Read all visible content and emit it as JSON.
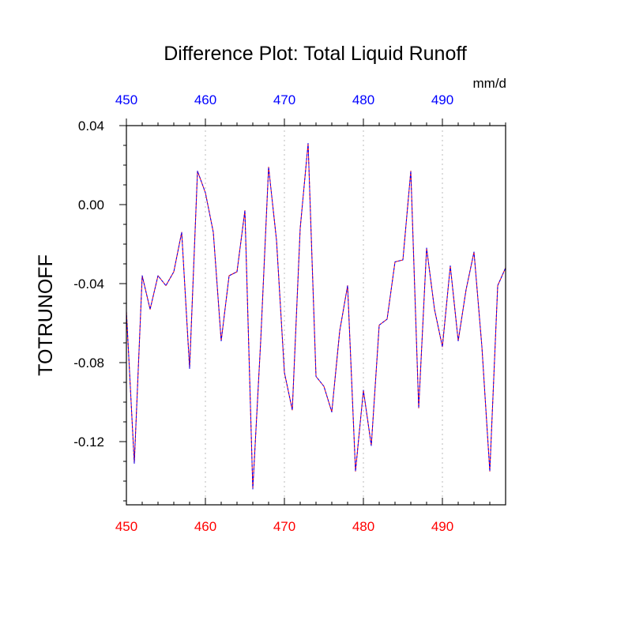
{
  "chart_data": {
    "type": "line",
    "title": "Difference Plot: Total Liquid Runoff",
    "units": "mm/d",
    "ylabel": "TOTRUNOFF",
    "xlabel": "",
    "xlim": [
      450,
      498
    ],
    "ylim": [
      -0.152,
      0.04
    ],
    "x_ticks": [
      "450",
      "460",
      "470",
      "480",
      "490"
    ],
    "x_tick_values": [
      450,
      460,
      470,
      480,
      490
    ],
    "y_ticks": [
      "0.04",
      "0.00",
      "-0.04",
      "-0.08",
      "-0.12"
    ],
    "y_tick_values": [
      0.04,
      0.0,
      -0.04,
      -0.08,
      -0.12
    ],
    "grid": "vertical-dotted",
    "colors": {
      "bottom_ticks": "#ff0000",
      "top_ticks": "#0000ff",
      "series_a": "#ff0000",
      "series_b": "#0000ff",
      "grid": "#bbbbbb"
    },
    "series": [
      {
        "line_style": "solid",
        "x": [
          450,
          451,
          452,
          453,
          454,
          455,
          456,
          457,
          458,
          459,
          460,
          461,
          462,
          463,
          464,
          465,
          466,
          467,
          468,
          469,
          470,
          471,
          472,
          473,
          474,
          475,
          476,
          477,
          478,
          479,
          480,
          481,
          482,
          483,
          484,
          485,
          486,
          487,
          488,
          489,
          490,
          491,
          492,
          493,
          494,
          495,
          496,
          497,
          498
        ],
        "y": [
          -0.054,
          -0.131,
          -0.036,
          -0.053,
          -0.036,
          -0.041,
          -0.034,
          -0.014,
          -0.083,
          0.017,
          0.006,
          -0.014,
          -0.069,
          -0.036,
          -0.034,
          -0.003,
          -0.144,
          -0.069,
          0.019,
          -0.018,
          -0.085,
          -0.104,
          -0.012,
          0.031,
          -0.087,
          -0.092,
          -0.105,
          -0.064,
          -0.041,
          -0.135,
          -0.094,
          -0.122,
          -0.061,
          -0.058,
          -0.029,
          -0.028,
          0.017,
          -0.103,
          -0.022,
          -0.053,
          -0.072,
          -0.031,
          -0.069,
          -0.043,
          -0.024,
          -0.072,
          -0.135,
          -0.041,
          -0.032
        ]
      },
      {
        "line_style": "dashed",
        "x": [
          450,
          451,
          452,
          453,
          454,
          455,
          456,
          457,
          458,
          459,
          460,
          461,
          462,
          463,
          464,
          465,
          466,
          467,
          468,
          469,
          470,
          471,
          472,
          473,
          474,
          475,
          476,
          477,
          478,
          479,
          480,
          481,
          482,
          483,
          484,
          485,
          486,
          487,
          488,
          489,
          490,
          491,
          492,
          493,
          494,
          495,
          496,
          497,
          498
        ],
        "y": [
          -0.054,
          -0.131,
          -0.036,
          -0.053,
          -0.036,
          -0.041,
          -0.034,
          -0.014,
          -0.083,
          0.017,
          0.006,
          -0.014,
          -0.069,
          -0.036,
          -0.034,
          -0.003,
          -0.144,
          -0.069,
          0.019,
          -0.018,
          -0.085,
          -0.104,
          -0.012,
          0.031,
          -0.087,
          -0.092,
          -0.105,
          -0.064,
          -0.041,
          -0.135,
          -0.094,
          -0.122,
          -0.061,
          -0.058,
          -0.029,
          -0.028,
          0.017,
          -0.103,
          -0.022,
          -0.053,
          -0.072,
          -0.031,
          -0.069,
          -0.043,
          -0.024,
          -0.072,
          -0.135,
          -0.041,
          -0.032
        ]
      }
    ]
  }
}
